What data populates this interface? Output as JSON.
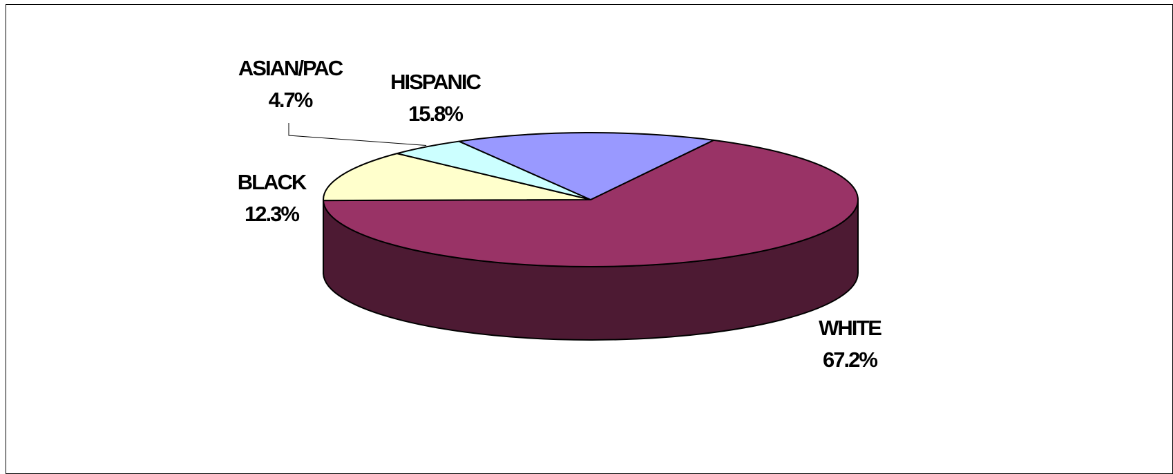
{
  "chart_data": {
    "type": "pie",
    "three_d": true,
    "title": "",
    "slices": [
      {
        "label": "WHITE",
        "value": 67.2,
        "value_label": "67.2%",
        "color": "#993366",
        "side_color": "#4d1a33"
      },
      {
        "label": "BLACK",
        "value": 12.3,
        "value_label": "12.3%",
        "color": "#ffffcc",
        "side_color": "#808066"
      },
      {
        "label": "ASIAN/PAC",
        "value": 4.7,
        "value_label": "4.7%",
        "color": "#ccffff",
        "side_color": "#668080"
      },
      {
        "label": "HISPANIC",
        "value": 15.8,
        "value_label": "15.8%",
        "color": "#9999ff",
        "side_color": "#4d4d80"
      }
    ],
    "legend": "none"
  }
}
